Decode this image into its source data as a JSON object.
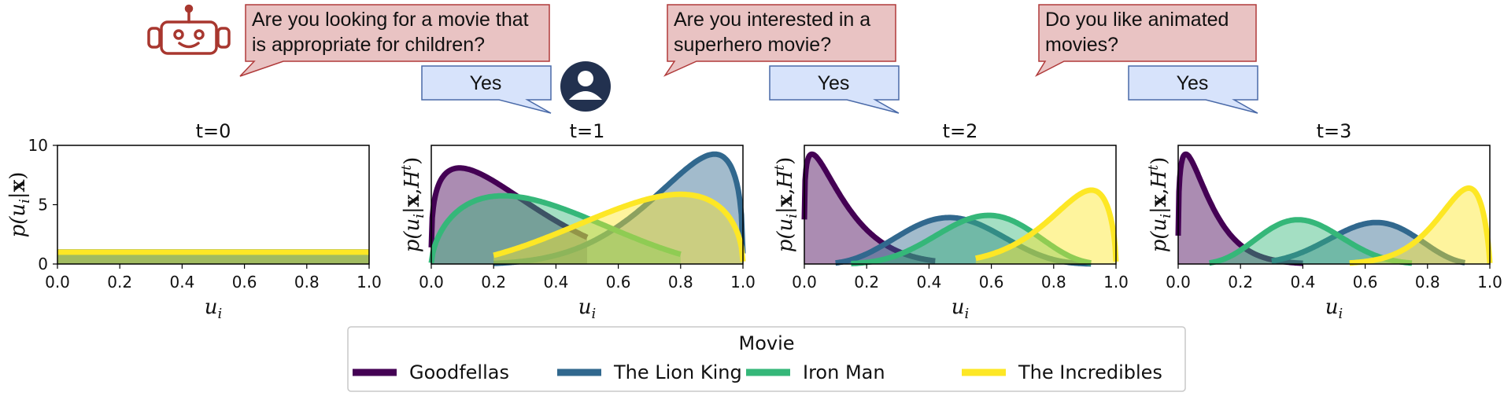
{
  "dialog": {
    "questions": [
      {
        "line1": "Are you looking for a movie that",
        "line2": "is appropriate for children?"
      },
      {
        "line1": "Are you interested in a",
        "line2": "superhero movie?"
      },
      {
        "line1": "Do you like animated",
        "line2": "movies?"
      }
    ],
    "answers": [
      "Yes",
      "Yes",
      "Yes"
    ]
  },
  "icons": {
    "assistant": "robot-icon",
    "user": "user-avatar-icon"
  },
  "colors": {
    "question_bubble": "#e9c3c3",
    "question_border": "#b03a3a",
    "answer_bubble": "#d7e3fb",
    "answer_border": "#4a6aa8",
    "robot": "#a8372f",
    "user_avatar": "#22314f"
  },
  "chart_data": {
    "type": "area",
    "xlabel": "u_i",
    "xlim": [
      0,
      1
    ],
    "xticks": [
      "0.0",
      "0.2",
      "0.4",
      "0.6",
      "0.8",
      "1.0"
    ],
    "legend": {
      "title": "Movie",
      "placement": "bottom-center"
    },
    "series": [
      {
        "name": "Goodfellas",
        "color": "#440154"
      },
      {
        "name": "The Lion King",
        "color": "#31688e"
      },
      {
        "name": "Iron Man",
        "color": "#35b779"
      },
      {
        "name": "The Incredibles",
        "color": "#fde725"
      }
    ],
    "panels": [
      {
        "title": "t=0",
        "ylabel": "p(u_i|x)",
        "ylim": [
          0,
          10
        ],
        "yticks": [
          "0",
          "5",
          "10"
        ],
        "curves": [
          {
            "kind": "uniform",
            "range": [
              0,
              1
            ]
          },
          {
            "kind": "uniform",
            "range": [
              0,
              1
            ]
          },
          {
            "kind": "uniform",
            "range": [
              0,
              1
            ]
          },
          {
            "kind": "uniform",
            "range": [
              0,
              1
            ]
          }
        ]
      },
      {
        "title": "t=1",
        "ylabel": "p(u_i|x,H^t)",
        "curves": [
          {
            "kind": "beta",
            "a": 1.3,
            "b": 4.0,
            "range": [
              0,
              0.5
            ]
          },
          {
            "kind": "beta",
            "a": 5.0,
            "b": 1.4,
            "range": [
              0.2,
              1.0
            ]
          },
          {
            "kind": "beta",
            "a": 1.6,
            "b": 3.0,
            "range": [
              0,
              0.8
            ]
          },
          {
            "kind": "beta",
            "a": 3.0,
            "b": 1.5,
            "range": [
              0.2,
              1.0
            ]
          }
        ]
      },
      {
        "title": "t=2",
        "ylabel": "p(u_i|x,H^t)",
        "curves": [
          {
            "kind": "beta",
            "a": 1.2,
            "b": 9.0,
            "range": [
              0,
              0.42
            ]
          },
          {
            "kind": "beta",
            "a": 5.0,
            "b": 5.6,
            "range": [
              0.1,
              0.92
            ]
          },
          {
            "kind": "beta",
            "a": 6.5,
            "b": 4.8,
            "range": [
              0.15,
              0.92
            ]
          },
          {
            "kind": "beta",
            "a": 8.0,
            "b": 1.6,
            "range": [
              0.55,
              1.0
            ]
          }
        ]
      },
      {
        "title": "t=3",
        "ylabel": "p(u_i|x,H^t)",
        "curves": [
          {
            "kind": "beta",
            "a": 1.3,
            "b": 13.0,
            "range": [
              0,
              0.4
            ]
          },
          {
            "kind": "beta",
            "a": 8.0,
            "b": 5.0,
            "range": [
              0.3,
              0.92
            ]
          },
          {
            "kind": "beta",
            "a": 6.0,
            "b": 9.0,
            "range": [
              0.1,
              0.75
            ]
          },
          {
            "kind": "beta",
            "a": 12.0,
            "b": 1.8,
            "range": [
              0.55,
              1.0
            ]
          }
        ]
      }
    ]
  }
}
